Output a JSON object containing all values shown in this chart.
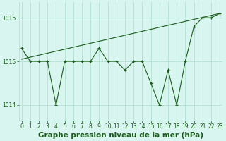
{
  "hours": [
    0,
    1,
    2,
    3,
    4,
    5,
    6,
    7,
    8,
    9,
    10,
    11,
    12,
    13,
    14,
    15,
    16,
    17,
    18,
    19,
    20,
    21,
    22,
    23
  ],
  "pressure": [
    1015.3,
    1015.0,
    1015.0,
    1015.0,
    1014.0,
    1015.0,
    1015.0,
    1015.0,
    1015.0,
    1015.3,
    1015.0,
    1015.0,
    1014.8,
    1015.0,
    1015.0,
    1014.5,
    1014.0,
    1014.8,
    1014.0,
    1015.0,
    1015.8,
    1016.0,
    1016.0,
    1016.1
  ],
  "trend": [
    1015.05,
    1016.1
  ],
  "trend_x": [
    0,
    23
  ],
  "line_color": "#1a5c1a",
  "bg_color": "#d8f5f0",
  "grid_color": "#aaddcc",
  "xlabel": "Graphe pression niveau de la mer (hPa)",
  "yticks": [
    1014,
    1015,
    1016
  ],
  "ylim": [
    1013.65,
    1016.35
  ],
  "xlim": [
    -0.3,
    23.3
  ],
  "tick_fontsize": 5.5,
  "label_fontsize": 7.5
}
